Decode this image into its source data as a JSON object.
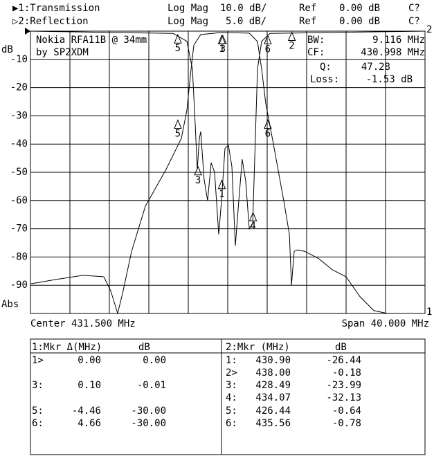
{
  "header": {
    "rows": [
      [
        "▶1:Transmission",
        "Log Mag",
        "10.0 dB/",
        "Ref",
        "0.00 dB",
        "C?"
      ],
      [
        "▷2:Reflection",
        "Log Mag",
        "5.0 dB/",
        "Ref",
        "0.00 dB",
        "C?"
      ]
    ]
  },
  "chart_data": {
    "type": "line",
    "y_label": "dB",
    "y_sublabel": "Abs",
    "center_label": "Center 431.500 MHz",
    "span_label": "Span 40.000 MHz",
    "xlim": [
      411.5,
      451.5
    ],
    "x_divisions": 10,
    "ylim": [
      -100,
      0
    ],
    "yticks": [
      -10,
      -20,
      -30,
      -40,
      -50,
      -60,
      -70,
      -80,
      -90
    ],
    "y2lim": [
      -50,
      0
    ],
    "grid": true,
    "info": {
      "title": "Nokia RFA11B @ 34mm",
      "author": "by SP2XDM",
      "fields": [
        [
          "BW:",
          "9.116 MHz"
        ],
        [
          "CF:",
          "430.998 MHz"
        ],
        [
          "Q:",
          "47.28"
        ],
        [
          "Loss:",
          "-1.53 dB"
        ]
      ]
    },
    "series": [
      {
        "name": "Transmission",
        "end_label": "1",
        "color": "#000",
        "x": [
          411.5,
          414.03,
          416.83,
          418.94,
          419.64,
          420.34,
          420.9,
          421.75,
          423.15,
          425.25,
          426.8,
          427.36,
          427.78,
          428.06,
          428.76,
          430.87,
          433.68,
          434.52,
          434.94,
          435.36,
          436.13,
          437.18,
          437.75,
          437.96,
          438.24,
          438.59,
          439.29,
          440.69,
          442.1,
          443.5,
          444.9,
          446.31,
          447.71,
          451.5
        ],
        "values": [
          -89.5,
          -88,
          -86.5,
          -87,
          -92,
          -100,
          -92,
          -78,
          -62,
          -49,
          -38,
          -28,
          -13.5,
          -5,
          -1.2,
          -0.5,
          -0.7,
          -3.7,
          -13.5,
          -25.7,
          -40,
          -60,
          -72,
          -90,
          -78,
          -77.5,
          -78,
          -80.5,
          -84.5,
          -87,
          -94,
          -99,
          -100,
          -100
        ],
        "markers": [
          {
            "label": "1",
            "x": 430.9,
            "y": -1.5
          },
          {
            "label": "3",
            "x": 431.0,
            "y": -1.5
          },
          {
            "label": "5",
            "x": 426.44,
            "y": -31.5
          },
          {
            "label": "6",
            "x": 435.56,
            "y": -31.5
          }
        ]
      },
      {
        "name": "Reflection",
        "end_label": "2",
        "color": "#000",
        "axis": "y2",
        "x": [
          411.5,
          425.96,
          427.36,
          427.92,
          428.2,
          428.41,
          428.62,
          428.76,
          429.11,
          429.46,
          429.82,
          430.17,
          430.59,
          430.87,
          431.22,
          431.57,
          431.92,
          432.27,
          432.62,
          432.97,
          433.32,
          433.68,
          434.03,
          434.24,
          434.52,
          434.94,
          435.78,
          451.5
        ],
        "values": [
          0,
          -0.4,
          -1.8,
          -6.7,
          -16.5,
          -24.5,
          -19,
          -17.8,
          -26.3,
          -30,
          -23.3,
          -25,
          -36,
          -30,
          -20.8,
          -20.2,
          -24,
          -38,
          -30,
          -22.7,
          -26.5,
          -35,
          -34,
          -22.5,
          -6.7,
          -1.8,
          -0.4,
          0
        ],
        "markers": [
          {
            "label": "1",
            "x": 430.9,
            "y": -26.44
          },
          {
            "label": "2",
            "x": 438.0,
            "y": -0.18
          },
          {
            "label": "3",
            "x": 428.49,
            "y": -23.99
          },
          {
            "label": "4",
            "x": 434.07,
            "y": -32.13
          },
          {
            "label": "5",
            "x": 426.44,
            "y": -0.64
          },
          {
            "label": "6",
            "x": 435.56,
            "y": -0.78
          }
        ]
      }
    ]
  },
  "table": {
    "panels": [
      {
        "header": [
          "1:Mkr Δ(MHz)",
          "dB"
        ],
        "rows": [
          [
            "1>",
            "0.00",
            "0.00"
          ],
          [
            "3:",
            "0.10",
            "-0.01"
          ],
          [
            "5:",
            "-4.46",
            "-30.00"
          ],
          [
            "6:",
            "4.66",
            "-30.00"
          ]
        ]
      },
      {
        "header": [
          "2:Mkr (MHz)",
          "dB"
        ],
        "rows": [
          [
            "1:",
            "430.90",
            "-26.44"
          ],
          [
            "2>",
            "438.00",
            "-0.18"
          ],
          [
            "3:",
            "428.49",
            "-23.99"
          ],
          [
            "4:",
            "434.07",
            "-32.13"
          ],
          [
            "5:",
            "426.44",
            "-0.64"
          ],
          [
            "6:",
            "435.56",
            "-0.78"
          ]
        ]
      }
    ]
  }
}
